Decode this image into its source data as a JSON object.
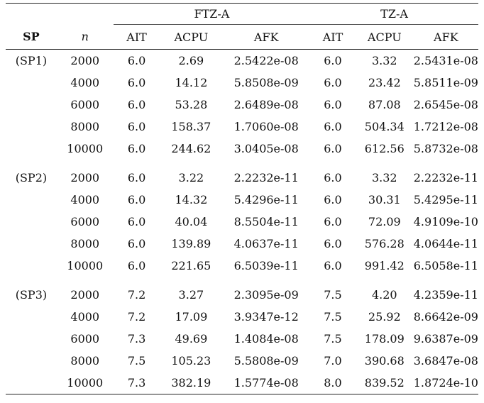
{
  "header": {
    "groups": [
      "FTZ-A",
      "TZ-A"
    ],
    "columns": [
      "SP",
      "n",
      "AIT",
      "ACPU",
      "AFK",
      "AIT",
      "ACPU",
      "AFK"
    ]
  },
  "sections": [
    {
      "label": "(SP1)",
      "rows": [
        [
          "2000",
          "6.0",
          "2.69",
          "2.5422e-08",
          "6.0",
          "3.32",
          "2.5431e-08"
        ],
        [
          "4000",
          "6.0",
          "14.12",
          "5.8508e-09",
          "6.0",
          "23.42",
          "5.8511e-09"
        ],
        [
          "6000",
          "6.0",
          "53.28",
          "2.6489e-08",
          "6.0",
          "87.08",
          "2.6545e-08"
        ],
        [
          "8000",
          "6.0",
          "158.37",
          "1.7060e-08",
          "6.0",
          "504.34",
          "1.7212e-08"
        ],
        [
          "10000",
          "6.0",
          "244.62",
          "3.0405e-08",
          "6.0",
          "612.56",
          "5.8732e-08"
        ]
      ]
    },
    {
      "label": "(SP2)",
      "rows": [
        [
          "2000",
          "6.0",
          "3.22",
          "2.2232e-11",
          "6.0",
          "3.32",
          "2.2232e-11"
        ],
        [
          "4000",
          "6.0",
          "14.32",
          "5.4296e-11",
          "6.0",
          "30.31",
          "5.4295e-11"
        ],
        [
          "6000",
          "6.0",
          "40.04",
          "8.5504e-11",
          "6.0",
          "72.09",
          "4.9109e-10"
        ],
        [
          "8000",
          "6.0",
          "139.89",
          "4.0637e-11",
          "6.0",
          "576.28",
          "4.0644e-11"
        ],
        [
          "10000",
          "6.0",
          "221.65",
          "6.5039e-11",
          "6.0",
          "991.42",
          "6.5058e-11"
        ]
      ]
    },
    {
      "label": "(SP3)",
      "rows": [
        [
          "2000",
          "7.2",
          "3.27",
          "2.3095e-09",
          "7.5",
          "4.20",
          "4.2359e-11"
        ],
        [
          "4000",
          "7.2",
          "17.09",
          "3.9347e-12",
          "7.5",
          "25.92",
          "8.6642e-09"
        ],
        [
          "6000",
          "7.3",
          "49.69",
          "1.4084e-08",
          "7.5",
          "178.09",
          "9.6387e-09"
        ],
        [
          "8000",
          "7.5",
          "105.23",
          "5.5808e-09",
          "7.0",
          "390.68",
          "3.6847e-08"
        ],
        [
          "10000",
          "7.3",
          "382.19",
          "1.5774e-08",
          "8.0",
          "839.52",
          "1.8724e-10"
        ]
      ]
    }
  ]
}
